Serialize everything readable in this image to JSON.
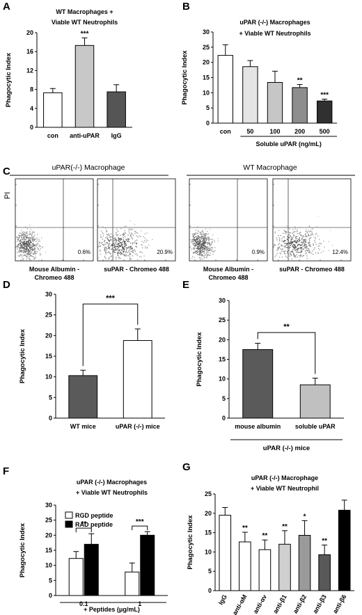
{
  "chart_data": [
    {
      "panel": "A",
      "type": "bar",
      "title": [
        "WT Macrophages +",
        "Viable WT Neutrophils"
      ],
      "ylabel": "Phagocytic Index",
      "xlabel": "",
      "ylim": [
        0,
        20
      ],
      "yticks": [
        0,
        4,
        8,
        12,
        16,
        20
      ],
      "categories": [
        "con",
        "anti-uPAR",
        "IgG"
      ],
      "values": [
        7.3,
        17.3,
        7.5
      ],
      "errors": [
        0.9,
        1.6,
        1.5
      ],
      "colors": [
        "#ffffff",
        "#c8c8c8",
        "#555555"
      ],
      "annotations": [
        "",
        "***",
        ""
      ]
    },
    {
      "panel": "B",
      "type": "bar",
      "title": [
        "uPAR (-/-)  Macrophages",
        "+ Viable WT Neutrophils"
      ],
      "ylabel": "Phagocytic Index",
      "xlabel": "Soluble uPAR (ng/mL)",
      "ylim": [
        0,
        30
      ],
      "yticks": [
        0,
        5,
        10,
        15,
        20,
        25,
        30
      ],
      "categories": [
        "con",
        "50",
        "100",
        "200",
        "500"
      ],
      "values": [
        22.3,
        18.6,
        13.4,
        11.7,
        7.3
      ],
      "errors": [
        3.5,
        2.0,
        3.7,
        1.0,
        0.6
      ],
      "colors": [
        "#ffffff",
        "#e4e4e4",
        "#c6c6c6",
        "#8e8e8e",
        "#303030"
      ],
      "annotations": [
        "",
        "",
        "",
        "**",
        "***"
      ]
    },
    {
      "panel": "D",
      "type": "bar",
      "ylabel": "Phagocytic Index",
      "xlabel": "",
      "ylim": [
        0,
        30
      ],
      "yticks": [
        0,
        5,
        10,
        15,
        20,
        25,
        30
      ],
      "categories": [
        "WT mice",
        "uPAR (-/-) mice"
      ],
      "values": [
        10.3,
        18.8
      ],
      "errors": [
        1.3,
        2.8
      ],
      "colors": [
        "#5a5a5a",
        "#ffffff"
      ],
      "bracket": "***"
    },
    {
      "panel": "E",
      "type": "bar",
      "ylabel": "Phagocytic Index",
      "xlabel": "uPAR (-/-) mice",
      "ylim": [
        0,
        30
      ],
      "yticks": [
        0,
        5,
        10,
        15,
        20,
        25,
        30
      ],
      "categories": [
        "mouse albumin",
        "soluble uPAR"
      ],
      "values": [
        17.5,
        8.5
      ],
      "errors": [
        1.6,
        1.7
      ],
      "colors": [
        "#5a5a5a",
        "#c0c0c0"
      ],
      "bracket": "**"
    },
    {
      "panel": "F",
      "type": "bar",
      "title": [
        "uPAR (-/-) Macrophages",
        "+ Viable WT Neutrophils"
      ],
      "ylabel": "Phagocytic Index",
      "xlabel": "+ Peptides (μg/mL)",
      "ylim": [
        0,
        30
      ],
      "yticks": [
        0,
        5,
        10,
        15,
        20,
        25,
        30
      ],
      "categories": [
        "0.1",
        "1"
      ],
      "series": [
        {
          "name": "RGD peptide",
          "color": "#ffffff",
          "values": [
            12.3,
            7.8
          ],
          "errors": [
            2.3,
            3.0
          ]
        },
        {
          "name": "RAD peptide",
          "color": "#000000",
          "values": [
            17.0,
            20.0
          ],
          "errors": [
            3.5,
            1.2
          ]
        }
      ],
      "brackets": [
        "**",
        "***"
      ]
    },
    {
      "panel": "G",
      "type": "bar",
      "title": [
        "uPAR (-/-) Macrophage",
        "+ Viable WT Neutrophil"
      ],
      "ylabel": "Phagocytic Index",
      "xlabel": "",
      "ylim": [
        0,
        25
      ],
      "yticks": [
        0,
        5,
        10,
        15,
        20,
        25
      ],
      "categories": [
        "IgG",
        "anti-αM",
        "anti-αv",
        "anti-β1",
        "anti-β2",
        "anti-β3",
        "anti-β6"
      ],
      "values": [
        19.5,
        12.6,
        10.6,
        12.0,
        14.3,
        9.3,
        20.8
      ],
      "errors": [
        2.0,
        2.5,
        2.5,
        3.5,
        3.8,
        2.5,
        2.6
      ],
      "colors": [
        "#ffffff",
        "#ffffff",
        "#ffffff",
        "#d0d0d0",
        "#9a9a9a",
        "#585858",
        "#000000"
      ],
      "annotations": [
        "",
        "**",
        "**",
        "**",
        "*",
        "**",
        ""
      ]
    }
  ],
  "panel_c": {
    "letter": "C",
    "group1": "uPAR(-/-) Macrophage",
    "group2": "WT Macrophage",
    "yaxis": "PI",
    "plots": [
      {
        "pct": "0.6%",
        "label": [
          "Mouse Albumin -",
          "Chromeo 488"
        ]
      },
      {
        "pct": "20.9%",
        "label": [
          "suPAR - Chromeo 488"
        ]
      },
      {
        "pct": "0.9%",
        "label": [
          "Mouse Albumin -",
          "Chromeo 488"
        ]
      },
      {
        "pct": "12.4%",
        "label": [
          "suPAR - Chromeo 488"
        ]
      }
    ]
  }
}
